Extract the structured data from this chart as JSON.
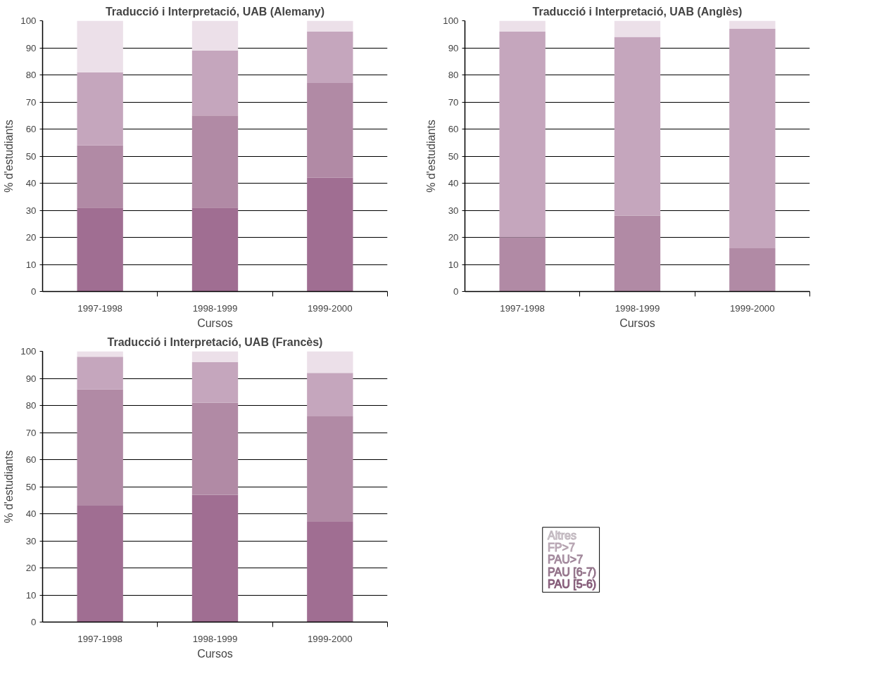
{
  "chart_data": [
    {
      "type": "bar",
      "stacked": true,
      "title": "Traducció i Interpretació, UAB (Alemany)",
      "xlabel": "Cursos",
      "ylabel": "% d'estudiants",
      "categories": [
        "1997-1998",
        "1998-1999",
        "1999-2000"
      ],
      "ylim": [
        0,
        100
      ],
      "yticks": [
        0,
        10,
        20,
        30,
        40,
        50,
        60,
        70,
        80,
        90,
        100
      ],
      "grid": "y",
      "series": [
        {
          "color": "#a06e92",
          "values": [
            31,
            31,
            42
          ]
        },
        {
          "color": "#b18aa5",
          "values": [
            23,
            34,
            35
          ]
        },
        {
          "color": "#c5a6bd",
          "values": [
            27,
            24,
            19
          ]
        },
        {
          "color": "#dcc6d6",
          "values": [
            0,
            0,
            0
          ]
        },
        {
          "color": "#ece0e9",
          "values": [
            19,
            11,
            4
          ]
        }
      ]
    },
    {
      "type": "bar",
      "stacked": true,
      "title": "Traducció i Interpretació, UAB (Anglès)",
      "xlabel": "Cursos",
      "ylabel": "% d'estudiants",
      "categories": [
        "1997-1998",
        "1998-1999",
        "1999-2000"
      ],
      "ylim": [
        0,
        100
      ],
      "yticks": [
        0,
        10,
        20,
        30,
        40,
        50,
        60,
        70,
        80,
        90,
        100
      ],
      "grid": "y",
      "series": [
        {
          "color": "#a06e92",
          "values": [
            0,
            0,
            0
          ]
        },
        {
          "color": "#b18aa5",
          "values": [
            20,
            28,
            16
          ]
        },
        {
          "color": "#c5a6bd",
          "values": [
            76,
            66,
            81
          ]
        },
        {
          "color": "#dcc6d6",
          "values": [
            0,
            0,
            0
          ]
        },
        {
          "color": "#ece0e9",
          "values": [
            4,
            6,
            3
          ]
        }
      ]
    },
    {
      "type": "bar",
      "stacked": true,
      "title": "Traducció i Interpretació, UAB (Francès)",
      "xlabel": "Cursos",
      "ylabel": "% d'estudiants",
      "categories": [
        "1997-1998",
        "1998-1999",
        "1999-2000"
      ],
      "ylim": [
        0,
        100
      ],
      "yticks": [
        0,
        10,
        20,
        30,
        40,
        50,
        60,
        70,
        80,
        90,
        100
      ],
      "grid": "y",
      "series": [
        {
          "name": "PAU  [5-6)",
          "color": "#a06e92",
          "values": [
            43,
            47,
            37
          ]
        },
        {
          "name": "PAU [6-7)",
          "color": "#b18aa5",
          "values": [
            43,
            34,
            39
          ]
        },
        {
          "name": "PAU>7",
          "color": "#c5a6bd",
          "values": [
            12,
            15,
            16
          ]
        },
        {
          "name": "FP>7",
          "color": "#dcc6d6",
          "values": [
            0,
            0,
            0
          ]
        },
        {
          "name": "Altres",
          "color": "#ece0e9",
          "values": [
            2,
            4,
            8
          ]
        }
      ]
    }
  ]
}
